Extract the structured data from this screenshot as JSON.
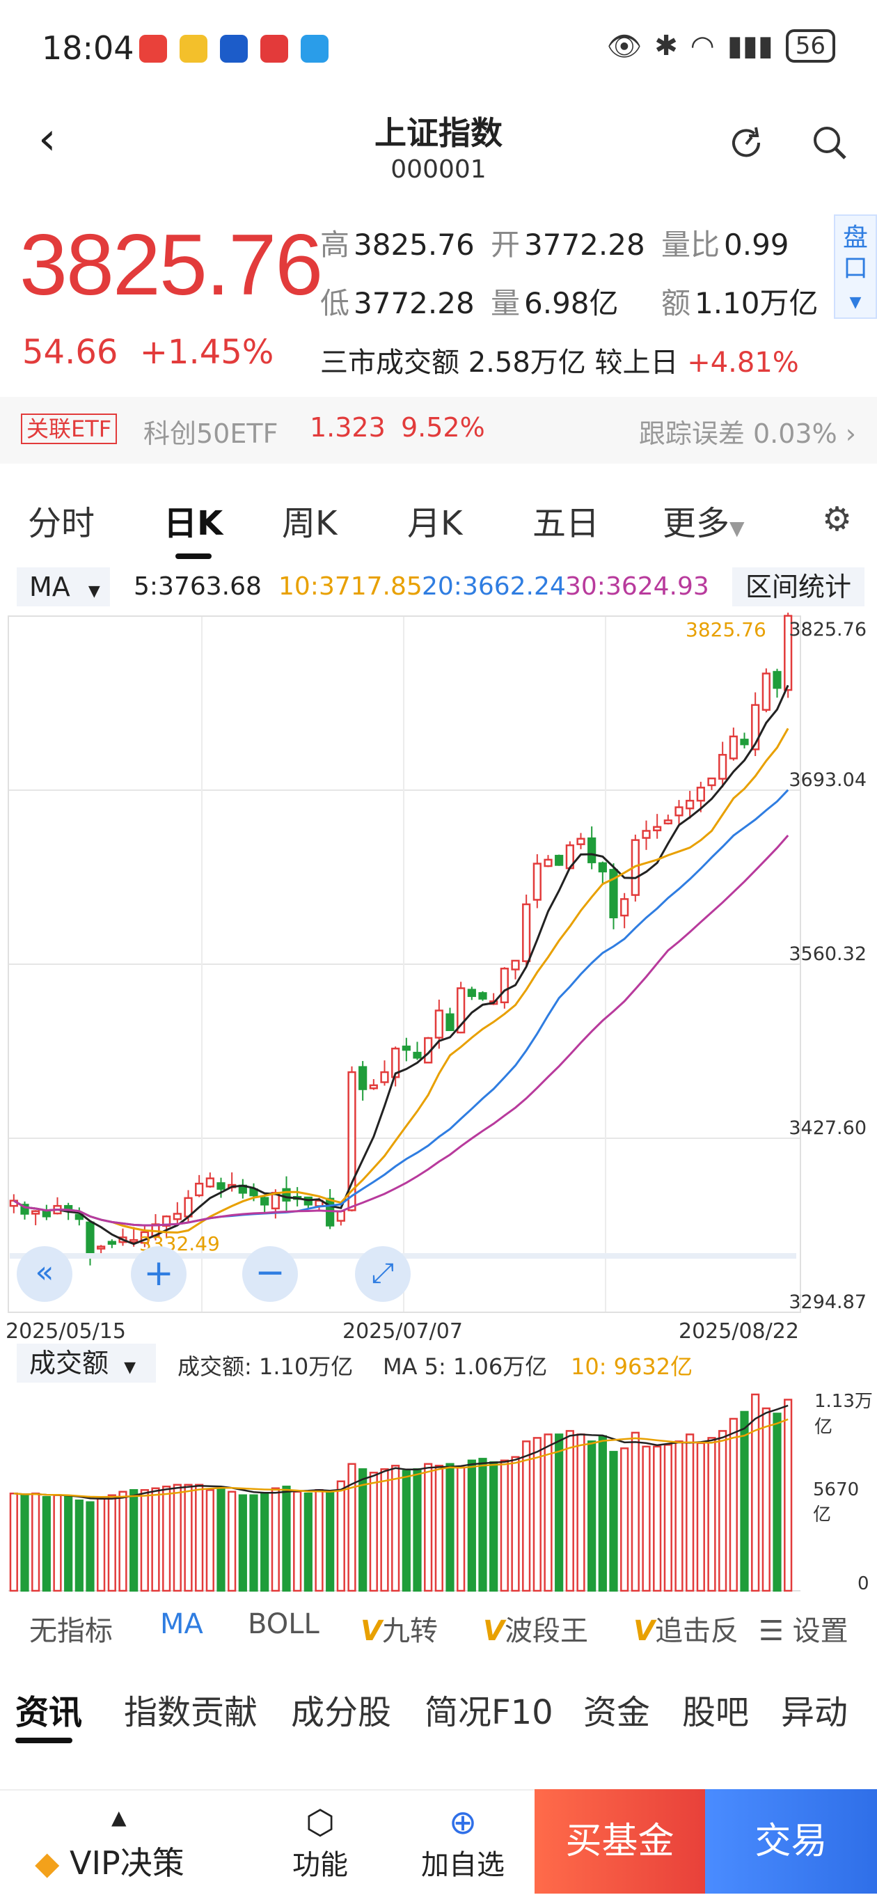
{
  "status_bar": {
    "time": "18:04",
    "battery": "56"
  },
  "header": {
    "title": "上证指数",
    "code": "000001"
  },
  "quote": {
    "price": "3825.76",
    "change": "54.66",
    "change_pct": "+1.45%",
    "high_label": "高",
    "high": "3825.76",
    "open_label": "开",
    "open": "3772.28",
    "vol_ratio_label": "量比",
    "vol_ratio": "0.99",
    "low_label": "低",
    "low": "3772.28",
    "volume_label": "量",
    "volume": "6.98亿",
    "amount_label": "额",
    "amount": "1.10万亿",
    "pankou": "盘口",
    "sanshi_text": "三市成交额 2.58万亿 较上日",
    "sanshi_pct": "+4.81%"
  },
  "etf": {
    "tag": "关联ETF",
    "name": "科创50ETF",
    "price": "1.323",
    "pct": "9.52%",
    "tracking": "跟踪误差 0.03%"
  },
  "tabs": [
    "分时",
    "日K",
    "周K",
    "月K",
    "五日",
    "更多"
  ],
  "ma_row": {
    "selector": "MA",
    "ma5": "5:3763.68",
    "ma10": "10:3717.85",
    "ma20": "20:3662.24",
    "ma30": "30:3624.93",
    "range_stats": "区间统计"
  },
  "chart_data": {
    "type": "candlestick",
    "x_labels": [
      "2025/05/15",
      "2025/07/07",
      "2025/08/22"
    ],
    "y_ticks": [
      3825.76,
      3693.04,
      3560.32,
      3427.6,
      3294.87
    ],
    "y_tick_labels": [
      "3825.76",
      "3693.04",
      "3560.32",
      "3427.60",
      "3294.87"
    ],
    "max_label": "3825.76",
    "min_label": "3332.49",
    "ylim": [
      3294.87,
      3825.76
    ],
    "closes": [
      3380,
      3370,
      3372,
      3368,
      3376,
      3372,
      3366,
      3340,
      3345,
      3348,
      3352,
      3350,
      3356,
      3362,
      3368,
      3370,
      3382,
      3393,
      3397,
      3389,
      3392,
      3386,
      3384,
      3377,
      3386,
      3380,
      3382,
      3377,
      3380,
      3361,
      3372,
      3478,
      3465,
      3468,
      3478,
      3496,
      3495,
      3489,
      3504,
      3525,
      3510,
      3542,
      3536,
      3534,
      3532,
      3557,
      3563,
      3606,
      3637,
      3640,
      3636,
      3651,
      3656,
      3638,
      3631,
      3596,
      3610,
      3655,
      3662,
      3665,
      3670,
      3680,
      3685,
      3695,
      3702,
      3720,
      3734,
      3728,
      3758,
      3782,
      3771,
      3826
    ],
    "colors": {
      "up": "#e23b3b",
      "down": "#1f9d3a",
      "ma5": "#222222",
      "ma10": "#e8a000",
      "ma20": "#2f7de1",
      "ma30": "#b83a9c"
    }
  },
  "volume_panel": {
    "selector": "成交额",
    "amount": "成交额: 1.10万亿",
    "ma5": "MA 5: 1.06万亿",
    "ma10": "10: 9632亿",
    "y_labels": [
      "1.13万亿",
      "5670亿",
      "0"
    ]
  },
  "volume_data": {
    "values": [
      0.56,
      0.55,
      0.56,
      0.54,
      0.55,
      0.54,
      0.52,
      0.51,
      0.53,
      0.55,
      0.57,
      0.58,
      0.58,
      0.59,
      0.6,
      0.61,
      0.61,
      0.61,
      0.58,
      0.59,
      0.57,
      0.55,
      0.55,
      0.56,
      0.59,
      0.6,
      0.57,
      0.56,
      0.58,
      0.57,
      0.63,
      0.73,
      0.7,
      0.68,
      0.7,
      0.72,
      0.69,
      0.7,
      0.73,
      0.72,
      0.73,
      0.71,
      0.75,
      0.76,
      0.74,
      0.75,
      0.77,
      0.86,
      0.88,
      0.9,
      0.9,
      0.92,
      0.9,
      0.86,
      0.89,
      0.8,
      0.82,
      0.91,
      0.83,
      0.83,
      0.84,
      0.86,
      0.9,
      0.85,
      0.88,
      0.92,
      0.99,
      1.03,
      1.13,
      1.05,
      1.02,
      1.1
    ],
    "ylim": [
      0,
      1.13
    ]
  },
  "indicators": [
    "无指标",
    "MA",
    "BOLL",
    "九转",
    "波段王",
    "追击反",
    "设置"
  ],
  "bottom_tabs": [
    "资讯",
    "指数贡献",
    "成分股",
    "简况F10",
    "资金",
    "股吧",
    "异动"
  ],
  "bottom_bar": {
    "vip": "VIP决策",
    "func": "功能",
    "add": "加自选",
    "buy_fund": "买基金",
    "trade": "交易"
  }
}
